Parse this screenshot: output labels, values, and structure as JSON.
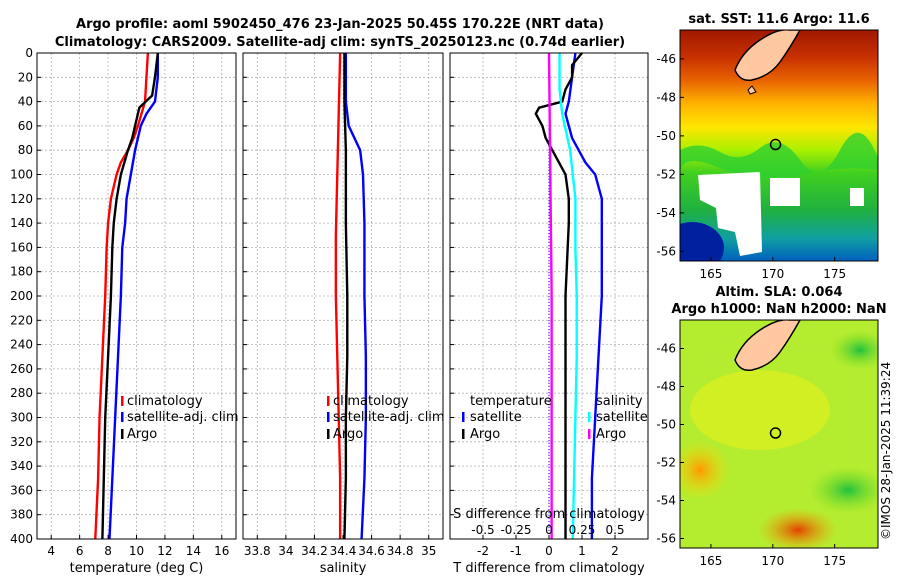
{
  "figure": {
    "title_line1": "Argo profile: aoml 5902450_476 23-Jan-2025 50.45S 170.22E (NRT data)",
    "title_line2": "Climatology: CARS2009. Satellite-adj clim: synTS_20250123.nc (0.74d earlier)",
    "credit": "©IMOS 28-Jan-2025 11:39:24"
  },
  "colors": {
    "climatology": "#ff0000",
    "satellite": "#0000ff",
    "argo": "#000000",
    "salinity_clim": "#ff00ff",
    "salinity_sat": "#00ffff",
    "land": "#ffc8a0"
  },
  "chart_data": [
    {
      "type": "line",
      "id": "temperature",
      "xlabel": "temperature (deg C)",
      "ylabel": "",
      "xlim": [
        3,
        17
      ],
      "ylim": [
        0,
        400
      ],
      "xticks": [
        4,
        6,
        8,
        10,
        12,
        14,
        16
      ],
      "yticks": [
        0,
        20,
        40,
        60,
        80,
        100,
        120,
        140,
        160,
        180,
        200,
        220,
        240,
        260,
        280,
        300,
        320,
        340,
        360,
        380,
        400
      ],
      "grid": true,
      "legend": [
        "climatology",
        "satellite-adj. clim",
        "Argo"
      ],
      "series": [
        {
          "name": "climatology",
          "color": "#ff0000",
          "depth": [
            0,
            20,
            40,
            60,
            70,
            80,
            90,
            100,
            110,
            120,
            140,
            160,
            200,
            250,
            300,
            350,
            400
          ],
          "values": [
            10.8,
            10.7,
            10.6,
            10.1,
            9.8,
            9.4,
            8.9,
            8.6,
            8.4,
            8.2,
            8.0,
            7.9,
            7.8,
            7.6,
            7.4,
            7.3,
            7.1
          ]
        },
        {
          "name": "satellite-adj. clim",
          "color": "#0000ff",
          "depth": [
            0,
            20,
            40,
            50,
            60,
            80,
            100,
            120,
            140,
            160,
            200,
            250,
            300,
            350,
            400
          ],
          "values": [
            11.5,
            11.5,
            11.3,
            10.7,
            10.3,
            9.9,
            9.6,
            9.3,
            9.2,
            9.0,
            8.9,
            8.7,
            8.5,
            8.3,
            8.1
          ]
        },
        {
          "name": "Argo",
          "color": "#000000",
          "depth": [
            0,
            20,
            35,
            45,
            50,
            60,
            70,
            80,
            100,
            120,
            140,
            160,
            200,
            250,
            300,
            350,
            400
          ],
          "values": [
            11.5,
            11.3,
            11.1,
            10.2,
            10.1,
            9.9,
            9.7,
            9.4,
            8.9,
            8.6,
            8.4,
            8.3,
            8.2,
            8.0,
            7.8,
            7.7,
            7.6
          ]
        }
      ]
    },
    {
      "type": "line",
      "id": "salinity",
      "xlabel": "salinity",
      "xlim": [
        33.7,
        35.1
      ],
      "ylim": [
        0,
        400
      ],
      "xticks": [
        33.8,
        34,
        34.2,
        34.4,
        34.6,
        34.8,
        35
      ],
      "xtick_labels": [
        "33.8",
        "34",
        "34.2",
        "34.4",
        "34.6",
        "34.8",
        "35"
      ],
      "grid": true,
      "legend": [
        "climatology",
        "satellite-adj. clim",
        "Argo"
      ],
      "series": [
        {
          "name": "climatology",
          "color": "#ff0000",
          "depth": [
            0,
            50,
            100,
            150,
            200,
            250,
            300,
            350,
            400
          ],
          "values": [
            34.38,
            34.37,
            34.36,
            34.35,
            34.35,
            34.36,
            34.37,
            34.38,
            34.38
          ]
        },
        {
          "name": "satellite-adj. clim",
          "color": "#0000ff",
          "depth": [
            0,
            40,
            60,
            70,
            80,
            100,
            140,
            200,
            250,
            300,
            350,
            400
          ],
          "values": [
            34.42,
            34.42,
            34.44,
            34.48,
            34.52,
            34.54,
            34.55,
            34.55,
            34.56,
            34.56,
            34.55,
            34.53
          ]
        },
        {
          "name": "Argo",
          "color": "#000000",
          "depth": [
            0,
            40,
            80,
            100,
            140,
            200,
            250,
            300,
            350,
            400
          ],
          "values": [
            34.41,
            34.41,
            34.42,
            34.42,
            34.42,
            34.43,
            34.43,
            34.42,
            34.42,
            34.41
          ]
        }
      ]
    },
    {
      "type": "line",
      "id": "difference",
      "xlabel": "T difference from climatology",
      "top_axis_label": "S difference from climatology",
      "xlim": [
        -3,
        3
      ],
      "ylim": [
        0,
        400
      ],
      "xticks": [
        -2,
        -1,
        0,
        1,
        2
      ],
      "xtick_labels": [
        "-2",
        "-1",
        "0",
        "1",
        "2"
      ],
      "top_ticks": [
        -0.5,
        -0.25,
        0,
        0.25,
        0.5
      ],
      "top_tick_labels": [
        "-0.5",
        "-0.25",
        "0",
        "0.25",
        "0.5"
      ],
      "grid": true,
      "legend_left_title": "temperature",
      "legend_left": [
        "satellite",
        "Argo"
      ],
      "legend_right_title": "salinity",
      "legend_right": [
        "satellite",
        "Argo"
      ],
      "series": [
        {
          "name": "T satellite",
          "color": "#0000ff",
          "depth": [
            0,
            20,
            40,
            50,
            60,
            70,
            80,
            90,
            100,
            120,
            140,
            160,
            200,
            250,
            300,
            350,
            400
          ],
          "values": [
            0.8,
            0.7,
            0.6,
            0.5,
            0.6,
            0.7,
            0.9,
            1.1,
            1.4,
            1.6,
            1.6,
            1.6,
            1.6,
            1.5,
            1.4,
            1.3,
            1.3
          ]
        },
        {
          "name": "T Argo",
          "color": "#000000",
          "depth": [
            0,
            10,
            20,
            30,
            40,
            45,
            50,
            55,
            60,
            70,
            80,
            90,
            100,
            120,
            140,
            200,
            250,
            300,
            350,
            400
          ],
          "values": [
            1.0,
            0.7,
            0.7,
            0.5,
            0.4,
            -0.3,
            -0.4,
            -0.3,
            -0.2,
            -0.1,
            0.1,
            0.3,
            0.5,
            0.6,
            0.6,
            0.5,
            0.5,
            0.5,
            0.5,
            0.5
          ]
        },
        {
          "name": "S satellite",
          "color": "#00ffff",
          "depth": [
            0,
            30,
            50,
            60,
            80,
            100,
            120,
            160,
            200,
            250,
            300,
            350,
            400
          ],
          "values": [
            0.08,
            0.08,
            0.1,
            0.12,
            0.16,
            0.18,
            0.2,
            0.2,
            0.21,
            0.21,
            0.2,
            0.19,
            0.18
          ]
        },
        {
          "name": "S Argo",
          "color": "#ff00ff",
          "depth": [
            0,
            100,
            200,
            300,
            400
          ],
          "values": [
            0.0,
            0.01,
            0.02,
            0.02,
            0.02
          ]
        }
      ]
    },
    {
      "type": "heatmap",
      "id": "sst-map",
      "title": "sat. SST: 11.6 Argo: 11.6",
      "xlim": [
        162.5,
        178.5
      ],
      "ylim": [
        -56.5,
        -44.5
      ],
      "xticks": [
        165,
        170,
        175
      ],
      "yticks": [
        -46,
        -48,
        -50,
        -52,
        -54,
        -56
      ],
      "ytick_labels": [
        "-46",
        "-48",
        "-50",
        "-52",
        "-54",
        "-56"
      ],
      "argo_location": [
        170.22,
        -50.45
      ]
    },
    {
      "type": "heatmap",
      "id": "sla-map",
      "title_line1": "Altim. SLA: 0.064",
      "title_line2": "Argo h1000: NaN h2000: NaN",
      "xlim": [
        162.5,
        178.5
      ],
      "ylim": [
        -56.5,
        -44.5
      ],
      "xticks": [
        165,
        170,
        175
      ],
      "yticks": [
        -46,
        -48,
        -50,
        -52,
        -54,
        -56
      ],
      "ytick_labels": [
        "-46",
        "-48",
        "-50",
        "-52",
        "-54",
        "-56"
      ],
      "argo_location": [
        170.22,
        -50.45
      ]
    }
  ]
}
